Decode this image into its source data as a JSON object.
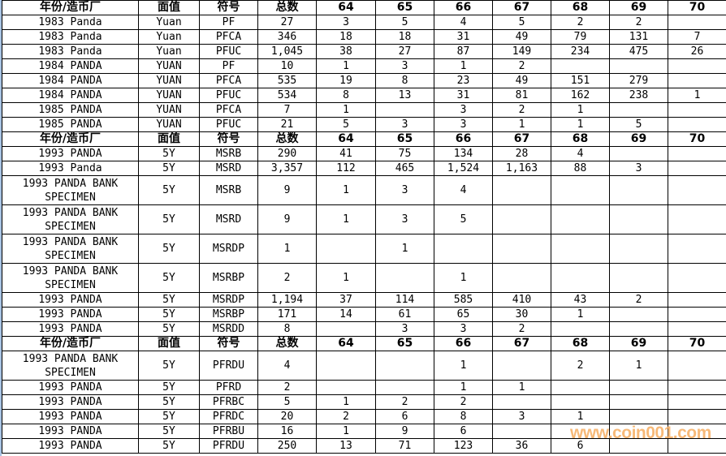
{
  "header": [
    "年份/造币厂",
    "面值",
    "符号",
    "总数",
    "64",
    "65",
    "66",
    "67",
    "68",
    "69",
    "70"
  ],
  "sections": [
    {
      "rows": [
        [
          "1983 Panda",
          "Yuan",
          "PF",
          "27",
          "3",
          "5",
          "4",
          "5",
          "2",
          "2",
          ""
        ],
        [
          "1983 Panda",
          "Yuan",
          "PFCA",
          "346",
          "18",
          "18",
          "31",
          "49",
          "79",
          "131",
          "7"
        ],
        [
          "1983 Panda",
          "Yuan",
          "PFUC",
          "1,045",
          "38",
          "27",
          "87",
          "149",
          "234",
          "475",
          "26"
        ],
        [
          "1984 PANDA",
          "YUAN",
          "PF",
          "10",
          "1",
          "3",
          "1",
          "2",
          "",
          "",
          ""
        ],
        [
          "1984 PANDA",
          "YUAN",
          "PFCA",
          "535",
          "19",
          "8",
          "23",
          "49",
          "151",
          "279",
          ""
        ],
        [
          "1984 PANDA",
          "YUAN",
          "PFUC",
          "534",
          "8",
          "13",
          "31",
          "81",
          "162",
          "238",
          "1"
        ],
        [
          "1985 PANDA",
          "YUAN",
          "PFCA",
          "7",
          "1",
          "",
          "3",
          "2",
          "1",
          "",
          ""
        ],
        [
          "1985 PANDA",
          "YUAN",
          "PFUC",
          "21",
          "5",
          "3",
          "3",
          "1",
          "1",
          "5",
          ""
        ]
      ]
    },
    {
      "rows": [
        [
          "1993 PANDA",
          "5Y",
          "MSRB",
          "290",
          "41",
          "75",
          "134",
          "28",
          "4",
          "",
          ""
        ],
        [
          "1993 Panda",
          "5Y",
          "MSRD",
          "3,357",
          "112",
          "465",
          "1,524",
          "1,163",
          "88",
          "3",
          ""
        ],
        [
          "1993 PANDA BANK SPECIMEN",
          "5Y",
          "MSRB",
          "9",
          "1",
          "3",
          "4",
          "",
          "",
          "",
          ""
        ],
        [
          "1993 PANDA BANK SPECIMEN",
          "5Y",
          "MSRD",
          "9",
          "1",
          "3",
          "5",
          "",
          "",
          "",
          ""
        ],
        [
          "1993 PANDA BANK SPECIMEN",
          "5Y",
          "MSRDP",
          "1",
          "",
          "1",
          "",
          "",
          "",
          "",
          ""
        ],
        [
          "1993 PANDA BANK SPECIMEN",
          "5Y",
          "MSRBP",
          "2",
          "1",
          "",
          "1",
          "",
          "",
          "",
          ""
        ],
        [
          "1993 PANDA",
          "5Y",
          "MSRDP",
          "1,194",
          "37",
          "114",
          "585",
          "410",
          "43",
          "2",
          ""
        ],
        [
          "1993 PANDA",
          "5Y",
          "MSRBP",
          "171",
          "14",
          "61",
          "65",
          "30",
          "1",
          "",
          ""
        ],
        [
          "1993 PANDA",
          "5Y",
          "MSRDD",
          "8",
          "",
          "3",
          "3",
          "2",
          "",
          "",
          ""
        ]
      ]
    },
    {
      "rows": [
        [
          "1993 PANDA BANK SPECIMEN",
          "5Y",
          "PFRDU",
          "4",
          "",
          "",
          "1",
          "",
          "2",
          "1",
          ""
        ],
        [
          "1993 PANDA",
          "5Y",
          "PFRD",
          "2",
          "",
          "",
          "1",
          "1",
          "",
          "",
          ""
        ],
        [
          "1993 PANDA",
          "5Y",
          "PFRBC",
          "5",
          "1",
          "2",
          "2",
          "",
          "",
          "",
          ""
        ],
        [
          "1993 PANDA",
          "5Y",
          "PFRDC",
          "20",
          "2",
          "6",
          "8",
          "3",
          "1",
          "",
          ""
        ],
        [
          "1993 PANDA",
          "5Y",
          "PFRBU",
          "16",
          "1",
          "9",
          "6",
          "",
          "",
          "",
          ""
        ],
        [
          "1993 PANDA",
          "5Y",
          "PFRDU",
          "250",
          "13",
          "71",
          "123",
          "36",
          "6",
          "",
          ""
        ]
      ]
    }
  ],
  "watermark": "www.coin001.com"
}
